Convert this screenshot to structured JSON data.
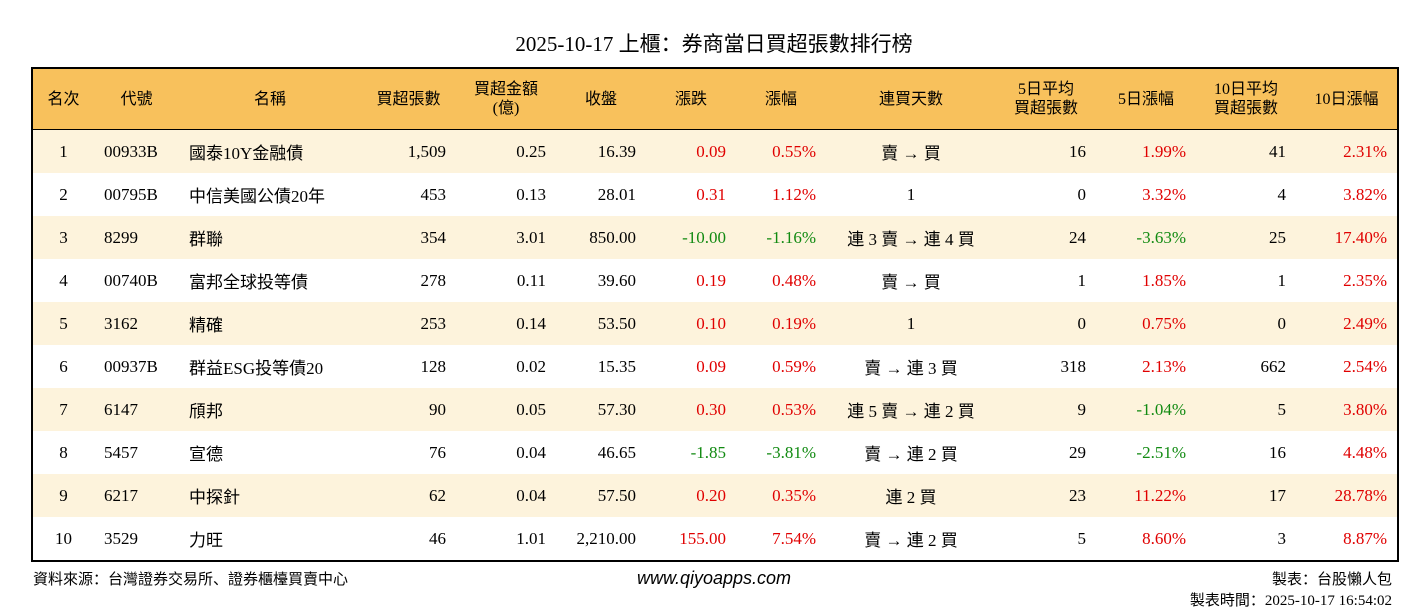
{
  "header": {
    "title": "2025-10-17 上櫃：券商當日買超張數排行榜"
  },
  "table": {
    "columns": [
      "名次",
      "代號",
      "名稱",
      "買超張數",
      "買超金額\n(億)",
      "收盤",
      "漲跌",
      "漲幅",
      "連買天數",
      "5日平均\n買超張數",
      "5日漲幅",
      "10日平均\n買超張數",
      "10日漲幅"
    ],
    "rows": [
      [
        "1",
        "00933B",
        "國泰10Y金融債",
        "1,509",
        "0.25",
        "16.39",
        "0.09",
        "0.55%",
        "賣 → 買",
        "16",
        "1.99%",
        "41",
        "2.31%"
      ],
      [
        "2",
        "00795B",
        "中信美國公債20年",
        "453",
        "0.13",
        "28.01",
        "0.31",
        "1.12%",
        "1",
        "0",
        "3.32%",
        "4",
        "3.82%"
      ],
      [
        "3",
        "8299",
        "群聯",
        "354",
        "3.01",
        "850.00",
        "-10.00",
        "-1.16%",
        "連 3 賣 → 連 4 買",
        "24",
        "-3.63%",
        "25",
        "17.40%"
      ],
      [
        "4",
        "00740B",
        "富邦全球投等債",
        "278",
        "0.11",
        "39.60",
        "0.19",
        "0.48%",
        "賣 → 買",
        "1",
        "1.85%",
        "1",
        "2.35%"
      ],
      [
        "5",
        "3162",
        "精確",
        "253",
        "0.14",
        "53.50",
        "0.10",
        "0.19%",
        "1",
        "0",
        "0.75%",
        "0",
        "2.49%"
      ],
      [
        "6",
        "00937B",
        "群益ESG投等債20",
        "128",
        "0.02",
        "15.35",
        "0.09",
        "0.59%",
        "賣 → 連 3 買",
        "318",
        "2.13%",
        "662",
        "2.54%"
      ],
      [
        "7",
        "6147",
        "頎邦",
        "90",
        "0.05",
        "57.30",
        "0.30",
        "0.53%",
        "連 5 賣 → 連 2 買",
        "9",
        "-1.04%",
        "5",
        "3.80%"
      ],
      [
        "8",
        "5457",
        "宣德",
        "76",
        "0.04",
        "46.65",
        "-1.85",
        "-3.81%",
        "賣 → 連 2 買",
        "29",
        "-2.51%",
        "16",
        "4.48%"
      ],
      [
        "9",
        "6217",
        "中探針",
        "62",
        "0.04",
        "57.50",
        "0.20",
        "0.35%",
        "連 2 買",
        "23",
        "11.22%",
        "17",
        "28.78%"
      ],
      [
        "10",
        "3529",
        "力旺",
        "46",
        "1.01",
        "2,210.00",
        "155.00",
        "7.54%",
        "賣 → 連 2 買",
        "5",
        "8.60%",
        "3",
        "8.87%"
      ]
    ]
  },
  "footer": {
    "source": "資料來源：台灣證券交易所、證券櫃檯買賣中心",
    "site": "www.qiyoapps.com",
    "author": "製表：台股懶人包",
    "time": "製表時間：2025-10-17 16:54:02"
  }
}
